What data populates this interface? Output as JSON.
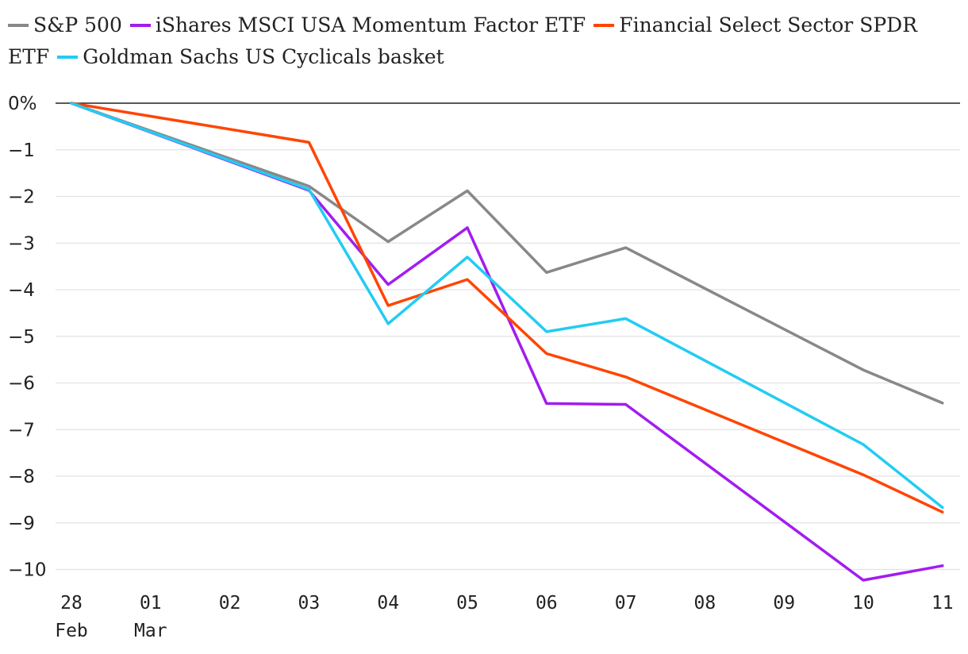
{
  "chart_data": {
    "type": "line",
    "title": "",
    "xlabel": "",
    "ylabel": "",
    "ylim": [
      -10.3,
      0
    ],
    "y_unit_suffix": "%",
    "y_ticks": [
      0,
      -1,
      -2,
      -3,
      -4,
      -5,
      -6,
      -7,
      -8,
      -9,
      -10
    ],
    "y_tick_labels": [
      "0%",
      "−1",
      "−2",
      "−3",
      "−4",
      "−5",
      "−6",
      "−7",
      "−8",
      "−9",
      "−10"
    ],
    "x_tick_labels": [
      {
        "line1": "28",
        "line2": "Feb"
      },
      {
        "line1": "01",
        "line2": "Mar"
      },
      {
        "line1": "02",
        "line2": ""
      },
      {
        "line1": "03",
        "line2": ""
      },
      {
        "line1": "04",
        "line2": ""
      },
      {
        "line1": "05",
        "line2": ""
      },
      {
        "line1": "06",
        "line2": ""
      },
      {
        "line1": "07",
        "line2": ""
      },
      {
        "line1": "08",
        "line2": ""
      },
      {
        "line1": "09",
        "line2": ""
      },
      {
        "line1": "10",
        "line2": ""
      },
      {
        "line1": "11",
        "line2": ""
      }
    ],
    "grid": "horizontal",
    "legend_position": "top",
    "series": [
      {
        "name": "S&P 500",
        "color": "#888888",
        "points": [
          [
            0,
            0
          ],
          [
            3,
            -1.78
          ],
          [
            4,
            -2.97
          ],
          [
            5,
            -1.88
          ],
          [
            6,
            -3.63
          ],
          [
            7,
            -3.1
          ],
          [
            10,
            -5.72
          ],
          [
            11,
            -6.43
          ]
        ]
      },
      {
        "name": "iShares MSCI USA Momentum Factor ETF",
        "color": "#a21cf0",
        "points": [
          [
            0,
            0
          ],
          [
            3,
            -1.87
          ],
          [
            4,
            -3.89
          ],
          [
            5,
            -2.67
          ],
          [
            6,
            -6.44
          ],
          [
            7,
            -6.46
          ],
          [
            10,
            -10.23
          ],
          [
            11,
            -9.92
          ]
        ]
      },
      {
        "name": "Financial Select Sector SPDR ETF",
        "color": "#ff4500",
        "points": [
          [
            0,
            0
          ],
          [
            3,
            -0.84
          ],
          [
            4,
            -4.34
          ],
          [
            5,
            -3.78
          ],
          [
            6,
            -5.37
          ],
          [
            7,
            -5.87
          ],
          [
            10,
            -7.97
          ],
          [
            11,
            -8.77
          ]
        ]
      },
      {
        "name": "Goldman Sachs US Cyclicals basket",
        "color": "#22ccf2",
        "points": [
          [
            0,
            0
          ],
          [
            3,
            -1.85
          ],
          [
            4,
            -4.73
          ],
          [
            5,
            -3.3
          ],
          [
            6,
            -4.9
          ],
          [
            7,
            -4.62
          ],
          [
            10,
            -7.32
          ],
          [
            11,
            -8.67
          ]
        ]
      }
    ]
  }
}
